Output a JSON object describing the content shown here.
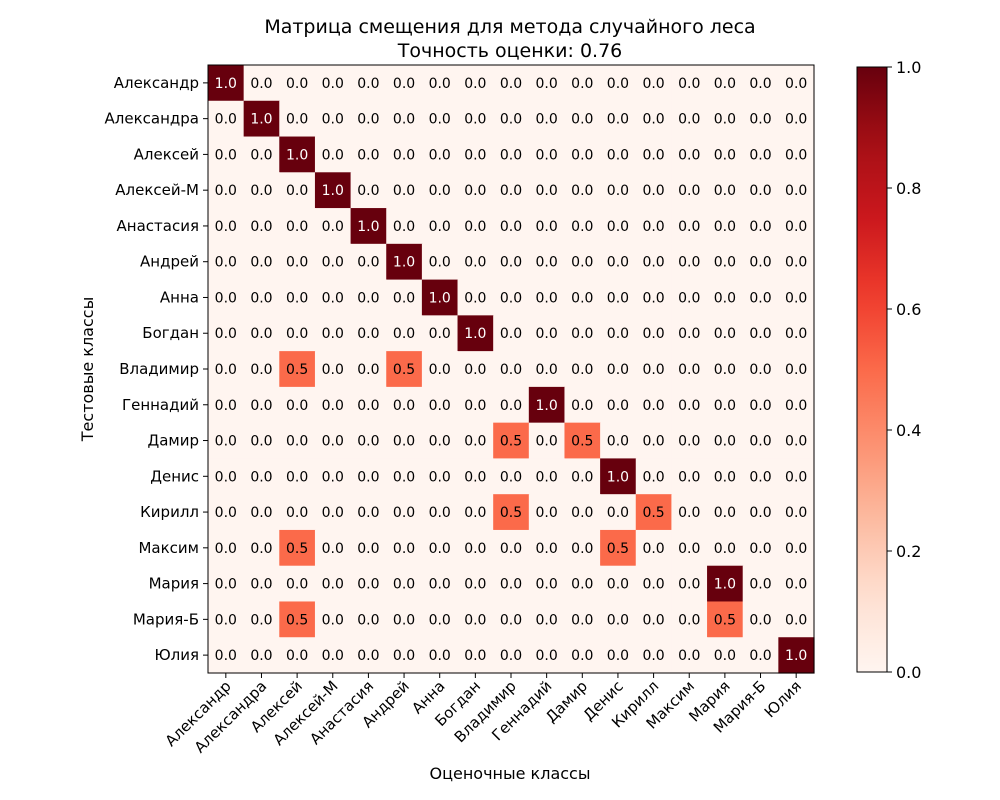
{
  "chart_data": {
    "type": "heatmap",
    "title": "Матрица смещения для метода случайного леса",
    "subtitle": "Точность оценки: 0.76",
    "xlabel": "Оценочные классы",
    "ylabel": "Тестовые классы",
    "x_categories": [
      "Александр",
      "Александра",
      "Алексей",
      "Алексей-М",
      "Анастасия",
      "Андрей",
      "Анна",
      "Богдан",
      "Владимир",
      "Геннадий",
      "Дамир",
      "Денис",
      "Кирилл",
      "Максим",
      "Мария",
      "Мария-Б",
      "Юлия"
    ],
    "y_categories": [
      "Александр",
      "Александра",
      "Алексей",
      "Алексей-М",
      "Анастасия",
      "Андрей",
      "Анна",
      "Богдан",
      "Владимир",
      "Геннадий",
      "Дамир",
      "Денис",
      "Кирилл",
      "Максим",
      "Мария",
      "Мария-Б",
      "Юлия"
    ],
    "values": [
      [
        1.0,
        0,
        0,
        0,
        0,
        0,
        0,
        0,
        0,
        0,
        0,
        0,
        0,
        0,
        0,
        0,
        0
      ],
      [
        0,
        1.0,
        0,
        0,
        0,
        0,
        0,
        0,
        0,
        0,
        0,
        0,
        0,
        0,
        0,
        0,
        0
      ],
      [
        0,
        0,
        1.0,
        0,
        0,
        0,
        0,
        0,
        0,
        0,
        0,
        0,
        0,
        0,
        0,
        0,
        0
      ],
      [
        0,
        0,
        0,
        1.0,
        0,
        0,
        0,
        0,
        0,
        0,
        0,
        0,
        0,
        0,
        0,
        0,
        0
      ],
      [
        0,
        0,
        0,
        0,
        1.0,
        0,
        0,
        0,
        0,
        0,
        0,
        0,
        0,
        0,
        0,
        0,
        0
      ],
      [
        0,
        0,
        0,
        0,
        0,
        1.0,
        0,
        0,
        0,
        0,
        0,
        0,
        0,
        0,
        0,
        0,
        0
      ],
      [
        0,
        0,
        0,
        0,
        0,
        0,
        1.0,
        0,
        0,
        0,
        0,
        0,
        0,
        0,
        0,
        0,
        0
      ],
      [
        0,
        0,
        0,
        0,
        0,
        0,
        0,
        1.0,
        0,
        0,
        0,
        0,
        0,
        0,
        0,
        0,
        0
      ],
      [
        0,
        0,
        0.5,
        0,
        0,
        0.5,
        0,
        0,
        0,
        0,
        0,
        0,
        0,
        0,
        0,
        0,
        0
      ],
      [
        0,
        0,
        0,
        0,
        0,
        0,
        0,
        0,
        0,
        1.0,
        0,
        0,
        0,
        0,
        0,
        0,
        0
      ],
      [
        0,
        0,
        0,
        0,
        0,
        0,
        0,
        0,
        0.5,
        0,
        0.5,
        0,
        0,
        0,
        0,
        0,
        0
      ],
      [
        0,
        0,
        0,
        0,
        0,
        0,
        0,
        0,
        0,
        0,
        0,
        1.0,
        0,
        0,
        0,
        0,
        0
      ],
      [
        0,
        0,
        0,
        0,
        0,
        0,
        0,
        0,
        0.5,
        0,
        0,
        0,
        0.5,
        0,
        0,
        0,
        0
      ],
      [
        0,
        0,
        0.5,
        0,
        0,
        0,
        0,
        0,
        0,
        0,
        0,
        0.5,
        0,
        0,
        0,
        0,
        0
      ],
      [
        0,
        0,
        0,
        0,
        0,
        0,
        0,
        0,
        0,
        0,
        0,
        0,
        0,
        0,
        1.0,
        0,
        0
      ],
      [
        0,
        0,
        0.5,
        0,
        0,
        0,
        0,
        0,
        0,
        0,
        0,
        0,
        0,
        0,
        0.5,
        0,
        0
      ],
      [
        0,
        0,
        0,
        0,
        0,
        0,
        0,
        0,
        0,
        0,
        0,
        0,
        0,
        0,
        0,
        0,
        1.0
      ]
    ],
    "value_format": "0.0",
    "colormap": "Reds",
    "colors": {
      "low": "#fff5f0",
      "mid": "#fb6a4a",
      "high": "#67000d"
    },
    "colorbar": {
      "range": [
        0.0,
        1.0
      ],
      "ticks": [
        "0.0",
        "0.2",
        "0.4",
        "0.6",
        "0.8",
        "1.0"
      ]
    },
    "grid": false
  }
}
